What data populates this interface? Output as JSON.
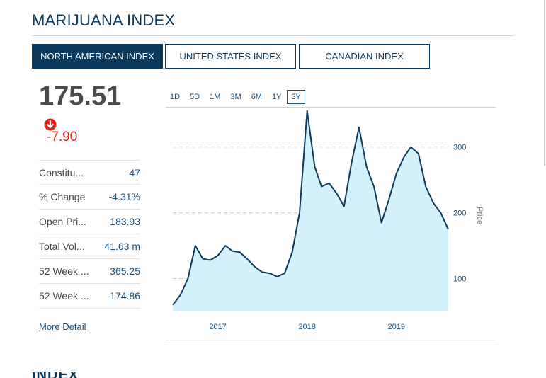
{
  "title": "MARIJUANA INDEX",
  "tabs": [
    {
      "label": "NORTH AMERICAN INDEX",
      "active": true
    },
    {
      "label": "UNITED STATES INDEX",
      "active": false
    },
    {
      "label": "CANADIAN INDEX",
      "active": false
    }
  ],
  "quote": {
    "value": "175.51",
    "change": "-7.90",
    "change_icon": "arrow-down-circle-icon"
  },
  "stats": [
    {
      "label": "Constitu...",
      "value": "47"
    },
    {
      "label": "% Change",
      "value": "-4.31%"
    },
    {
      "label": "Open Pri...",
      "value": "183.93"
    },
    {
      "label": "Total Vol...",
      "value": "41.63 m"
    },
    {
      "label": "52 Week ...",
      "value": "365.25"
    },
    {
      "label": "52 Week ...",
      "value": "174.86"
    }
  ],
  "more_link": "More Detail",
  "ranges": [
    {
      "label": "1D",
      "active": false
    },
    {
      "label": "5D",
      "active": false
    },
    {
      "label": "1M",
      "active": false
    },
    {
      "label": "3M",
      "active": false
    },
    {
      "label": "6M",
      "active": false
    },
    {
      "label": "1Y",
      "active": false
    },
    {
      "label": "3Y",
      "active": true
    }
  ],
  "colors": {
    "brand": "#0d3a5c",
    "negative": "#e4231b",
    "line": "#0d3a5c",
    "fill": "#d3f1fb",
    "link": "#1a4f7a"
  },
  "chart_data": {
    "type": "area",
    "x_ticks": [
      "2017",
      "2018",
      "2019"
    ],
    "y_ticks": [
      100,
      200,
      300
    ],
    "ylabel": "Price",
    "ylim": [
      50,
      360
    ],
    "grid": "dashed-horizontal",
    "x": [
      "2016-07",
      "2016-08",
      "2016-09",
      "2016-10",
      "2016-11",
      "2016-12",
      "2017-01",
      "2017-02",
      "2017-03",
      "2017-04",
      "2017-05",
      "2017-06",
      "2017-07",
      "2017-08",
      "2017-09",
      "2017-10",
      "2017-11",
      "2017-12",
      "2018-01",
      "2018-02",
      "2018-03",
      "2018-04",
      "2018-05",
      "2018-06",
      "2018-07",
      "2018-08",
      "2018-09",
      "2018-10",
      "2018-11",
      "2018-12",
      "2019-01",
      "2019-02",
      "2019-03",
      "2019-04",
      "2019-05",
      "2019-06",
      "2019-07",
      "2019-08"
    ],
    "values": [
      60,
      75,
      100,
      150,
      130,
      128,
      135,
      150,
      142,
      140,
      130,
      118,
      110,
      108,
      103,
      108,
      140,
      200,
      355,
      270,
      240,
      245,
      230,
      210,
      275,
      330,
      270,
      240,
      185,
      220,
      260,
      285,
      300,
      290,
      240,
      215,
      200,
      175
    ]
  }
}
